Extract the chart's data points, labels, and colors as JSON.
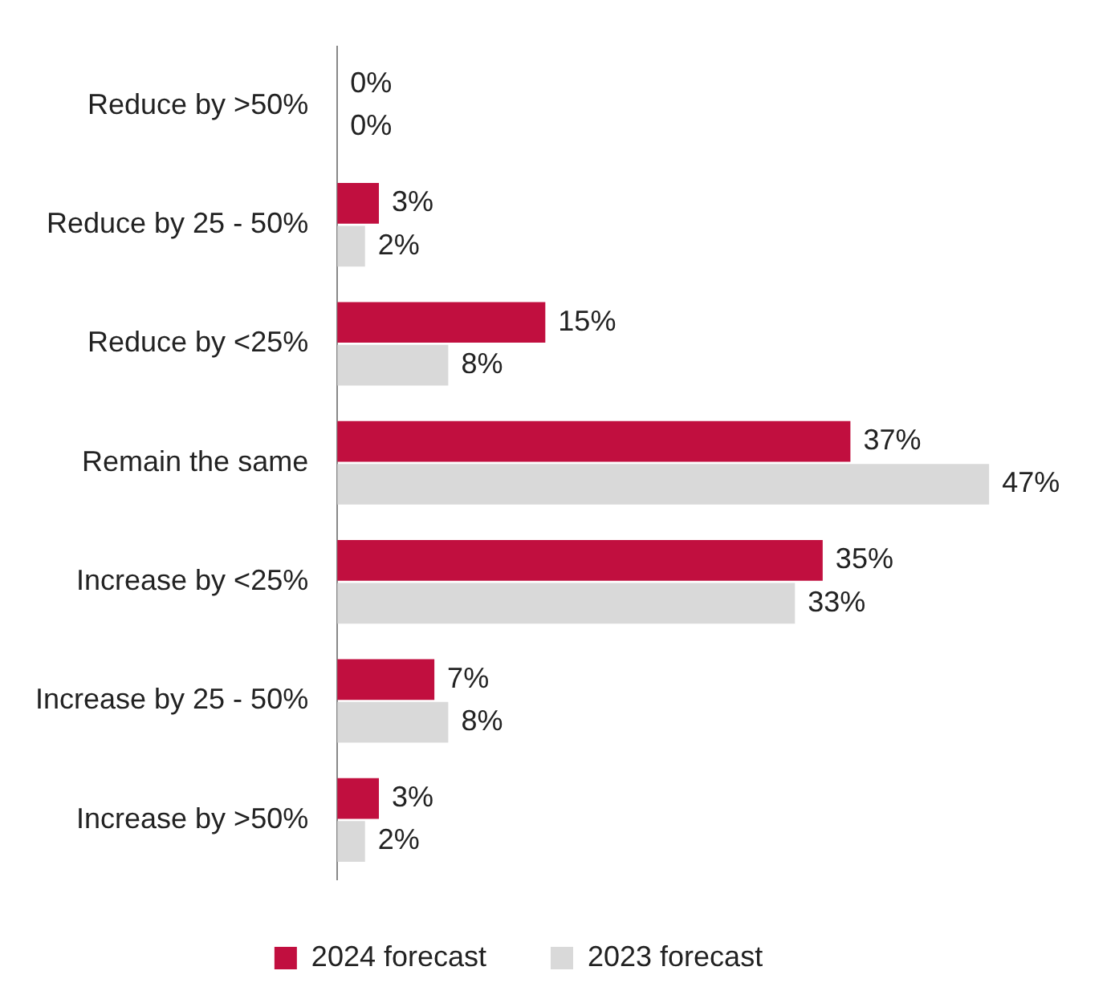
{
  "chart_data": {
    "type": "bar",
    "orientation": "horizontal",
    "categories": [
      "Reduce by >50%",
      "Reduce by 25 - 50%",
      "Reduce by <25%",
      "Remain the same",
      "Increase by <25%",
      "Increase by 25 - 50%",
      "Increase by >50%"
    ],
    "series": [
      {
        "name": "2024 forecast",
        "color": "#c10f3f",
        "values": [
          0,
          3,
          15,
          37,
          35,
          7,
          3
        ],
        "value_labels": [
          "0%",
          "3%",
          "15%",
          "37%",
          "35%",
          "7%",
          "3%"
        ]
      },
      {
        "name": "2023 forecast",
        "color": "#d9d9d9",
        "values": [
          0,
          2,
          8,
          47,
          33,
          8,
          2
        ],
        "value_labels": [
          "0%",
          "2%",
          "8%",
          "47%",
          "33%",
          "8%",
          "2%"
        ]
      }
    ],
    "legend": "bottom",
    "grid": false
  }
}
